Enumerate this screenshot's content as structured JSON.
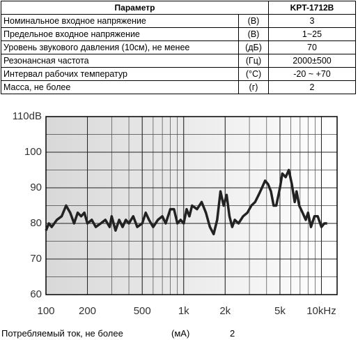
{
  "table": {
    "header": [
      "Параметр",
      "KPT-1712B"
    ],
    "rows": [
      [
        "Номинальное входное напряжение",
        "(В)",
        "3"
      ],
      [
        "Предельное входное напряжение",
        "(В)",
        "1~25"
      ],
      [
        "Уровень звукового давления (10см), не менее",
        "(дБ)",
        "70"
      ],
      [
        "Резонансная частота",
        "(Гц)",
        "2000±500"
      ],
      [
        "Интервал рабочих температур",
        "(°C)",
        "-20 ~ +70"
      ],
      [
        "Масса, не более",
        "(г)",
        "2"
      ]
    ]
  },
  "chart_data": {
    "type": "line",
    "xscale": "log",
    "grid": true,
    "x": [
      100,
      105,
      110,
      120,
      130,
      140,
      150,
      160,
      170,
      180,
      190,
      200,
      215,
      230,
      250,
      270,
      290,
      300,
      320,
      340,
      360,
      380,
      400,
      430,
      460,
      500,
      530,
      560,
      600,
      650,
      700,
      740,
      800,
      850,
      900,
      950,
      1000,
      1050,
      1100,
      1150,
      1250,
      1350,
      1450,
      1550,
      1650,
      1750,
      1850,
      1950,
      2050,
      2150,
      2250,
      2350,
      2500,
      2700,
      2900,
      3100,
      3300,
      3500,
      3700,
      3900,
      4100,
      4300,
      4500,
      4700,
      5000,
      5200,
      5500,
      5800,
      6100,
      6400,
      6600,
      6900,
      7300,
      7700,
      8000,
      8400,
      8900,
      9400,
      10000,
      10500,
      11000
    ],
    "series": [
      {
        "color": "#222222",
        "values": [
          78,
          80,
          79,
          81,
          82,
          85,
          83,
          80,
          83,
          82,
          83,
          80,
          81,
          79,
          80,
          81,
          79,
          82,
          78,
          81,
          79,
          81,
          80,
          82,
          79,
          80,
          83,
          81,
          79,
          81,
          82,
          80,
          84,
          84,
          80,
          81,
          80,
          84,
          82,
          85,
          84,
          86,
          83,
          79,
          77,
          81,
          89,
          85,
          88,
          82,
          79,
          81,
          80,
          82,
          83,
          85,
          86,
          88,
          90,
          92,
          91,
          89,
          85,
          85,
          90,
          94,
          93,
          95,
          91,
          86,
          89,
          85,
          83,
          81,
          83,
          79,
          82,
          82,
          79,
          80,
          80
        ]
      }
    ],
    "xlim": [
      100,
      13000
    ],
    "ylim": [
      60,
      110
    ],
    "xticks": [
      100,
      200,
      500,
      {
        "value": 1000,
        "label": "1k"
      },
      {
        "value": 2000,
        "label": "2k"
      },
      {
        "value": 5000,
        "label": "5k"
      },
      {
        "value": 10000,
        "label": "10kHz"
      }
    ],
    "yticks": [
      60,
      70,
      80,
      90,
      100,
      {
        "value": 110,
        "label": "110dB"
      }
    ]
  },
  "footer": {
    "label": "Потребляемый ток, не более",
    "unit": "(мА)",
    "value": "2"
  }
}
